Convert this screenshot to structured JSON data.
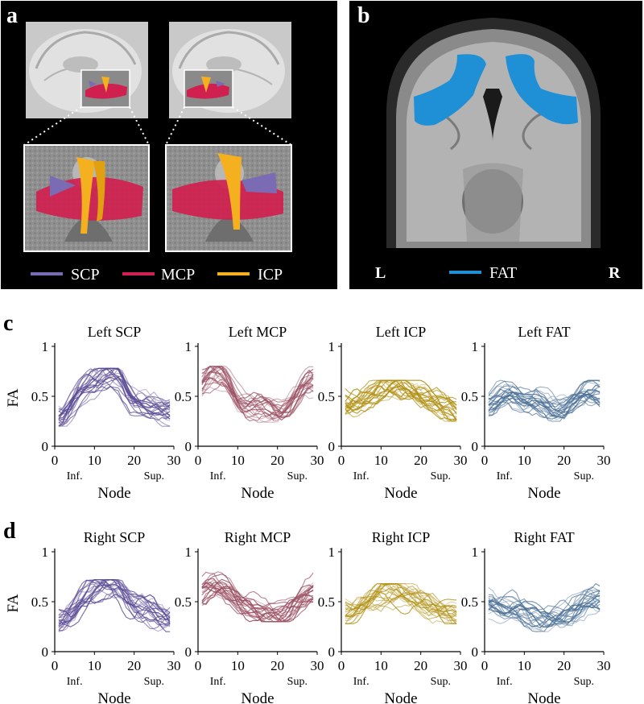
{
  "panels": {
    "a": {
      "letter": "a",
      "legend": [
        {
          "label": "SCP",
          "color": "#7b6bb5"
        },
        {
          "label": "MCP",
          "color": "#d0204f"
        },
        {
          "label": "ICP",
          "color": "#f5b01f"
        }
      ]
    },
    "b": {
      "letter": "b",
      "left_label": "L",
      "right_label": "R",
      "legend": [
        {
          "label": "FAT",
          "color": "#1f8fd6"
        }
      ]
    },
    "c": {
      "letter": "c"
    },
    "d": {
      "letter": "d"
    }
  },
  "colors": {
    "SCP": "#5a4a94",
    "MCP": "#9a4f62",
    "ICP": "#b08f10",
    "FAT": "#4a6f95"
  },
  "chart_data": [
    {
      "type": "line",
      "panel": "c",
      "title": "Left SCP",
      "tract": "SCP",
      "xlabel": "Node",
      "ylabel": "FA",
      "xlim": [
        0,
        30
      ],
      "ylim": [
        0,
        1
      ],
      "xticks": [
        0,
        10,
        20,
        30
      ],
      "yticks": [
        0,
        0.5,
        1
      ],
      "ytick_labels": [
        "0",
        "0.5",
        "1"
      ],
      "x_annotations": [
        "Inf.",
        "Sup."
      ],
      "grid": false,
      "x": [
        1,
        2,
        3,
        4,
        5,
        6,
        7,
        8,
        9,
        10,
        11,
        12,
        13,
        14,
        15,
        16,
        17,
        18,
        19,
        20,
        21,
        22,
        23,
        24,
        25,
        26,
        27,
        28,
        29
      ],
      "mean": [
        0.27,
        0.28,
        0.32,
        0.38,
        0.45,
        0.52,
        0.57,
        0.61,
        0.64,
        0.66,
        0.68,
        0.7,
        0.71,
        0.71,
        0.7,
        0.68,
        0.62,
        0.54,
        0.48,
        0.45,
        0.44,
        0.43,
        0.42,
        0.4,
        0.39,
        0.37,
        0.35,
        0.33,
        0.32
      ],
      "range": [
        0.2,
        0.78
      ]
    },
    {
      "type": "line",
      "panel": "c",
      "title": "Left MCP",
      "tract": "MCP",
      "xlabel": "Node",
      "ylabel": "FA",
      "xlim": [
        0,
        30
      ],
      "ylim": [
        0,
        1
      ],
      "xticks": [
        0,
        10,
        20,
        30
      ],
      "yticks": [
        0,
        0.5,
        1
      ],
      "ytick_labels": [
        "0",
        "0.5",
        "1"
      ],
      "x_annotations": [
        "Inf.",
        "Sup."
      ],
      "grid": false,
      "x": [
        1,
        2,
        3,
        4,
        5,
        6,
        7,
        8,
        9,
        10,
        11,
        12,
        13,
        14,
        15,
        16,
        17,
        18,
        19,
        20,
        21,
        22,
        23,
        24,
        25,
        26,
        27,
        28,
        29
      ],
      "mean": [
        0.62,
        0.66,
        0.69,
        0.7,
        0.7,
        0.69,
        0.66,
        0.6,
        0.53,
        0.47,
        0.43,
        0.41,
        0.4,
        0.39,
        0.38,
        0.37,
        0.36,
        0.35,
        0.34,
        0.34,
        0.35,
        0.38,
        0.42,
        0.47,
        0.52,
        0.56,
        0.59,
        0.61,
        0.62
      ],
      "range": [
        0.24,
        0.8
      ]
    },
    {
      "type": "line",
      "panel": "c",
      "title": "Left ICP",
      "tract": "ICP",
      "xlabel": "Node",
      "ylabel": "FA",
      "xlim": [
        0,
        30
      ],
      "ylim": [
        0,
        1
      ],
      "xticks": [
        0,
        10,
        20,
        30
      ],
      "yticks": [
        0,
        0.5,
        1
      ],
      "ytick_labels": [
        "0",
        "0.5",
        "1"
      ],
      "x_annotations": [
        "Inf.",
        "Sup."
      ],
      "grid": false,
      "x": [
        1,
        2,
        3,
        4,
        5,
        6,
        7,
        8,
        9,
        10,
        11,
        12,
        13,
        14,
        15,
        16,
        17,
        18,
        19,
        20,
        21,
        22,
        23,
        24,
        25,
        26,
        27,
        28,
        29
      ],
      "mean": [
        0.41,
        0.42,
        0.43,
        0.44,
        0.46,
        0.48,
        0.5,
        0.52,
        0.54,
        0.56,
        0.57,
        0.58,
        0.58,
        0.58,
        0.57,
        0.56,
        0.55,
        0.54,
        0.53,
        0.51,
        0.49,
        0.47,
        0.45,
        0.43,
        0.41,
        0.39,
        0.37,
        0.35,
        0.33
      ],
      "range": [
        0.25,
        0.66
      ]
    },
    {
      "type": "line",
      "panel": "c",
      "title": "Left FAT",
      "tract": "FAT",
      "xlabel": "Node",
      "ylabel": "FA",
      "xlim": [
        0,
        30
      ],
      "ylim": [
        0,
        1
      ],
      "xticks": [
        0,
        10,
        20,
        30
      ],
      "yticks": [
        0,
        0.5,
        1
      ],
      "ytick_labels": [
        "0",
        "0.5",
        "1"
      ],
      "x_annotations": [
        "Inf.",
        "Sup."
      ],
      "grid": false,
      "x": [
        1,
        2,
        3,
        4,
        5,
        6,
        7,
        8,
        9,
        10,
        11,
        12,
        13,
        14,
        15,
        16,
        17,
        18,
        19,
        20,
        21,
        22,
        23,
        24,
        25,
        26,
        27,
        28,
        29
      ],
      "mean": [
        0.44,
        0.45,
        0.47,
        0.49,
        0.5,
        0.5,
        0.49,
        0.47,
        0.45,
        0.44,
        0.44,
        0.45,
        0.46,
        0.45,
        0.43,
        0.41,
        0.39,
        0.38,
        0.38,
        0.39,
        0.41,
        0.44,
        0.47,
        0.5,
        0.52,
        0.53,
        0.53,
        0.53,
        0.52
      ],
      "range": [
        0.25,
        0.66
      ]
    },
    {
      "type": "line",
      "panel": "d",
      "title": "Right SCP",
      "tract": "SCP",
      "xlabel": "Node",
      "ylabel": "FA",
      "xlim": [
        0,
        30
      ],
      "ylim": [
        0,
        1
      ],
      "xticks": [
        0,
        10,
        20,
        30
      ],
      "yticks": [
        0,
        0.5,
        1
      ],
      "ytick_labels": [
        "0",
        "0.5",
        "1"
      ],
      "x_annotations": [
        "Inf.",
        "Sup."
      ],
      "grid": false,
      "x": [
        1,
        2,
        3,
        4,
        5,
        6,
        7,
        8,
        9,
        10,
        11,
        12,
        13,
        14,
        15,
        16,
        17,
        18,
        19,
        20,
        21,
        22,
        23,
        24,
        25,
        26,
        27,
        28,
        29
      ],
      "mean": [
        0.28,
        0.29,
        0.32,
        0.36,
        0.42,
        0.48,
        0.53,
        0.57,
        0.6,
        0.62,
        0.64,
        0.65,
        0.66,
        0.66,
        0.65,
        0.63,
        0.59,
        0.54,
        0.49,
        0.45,
        0.43,
        0.42,
        0.41,
        0.39,
        0.38,
        0.36,
        0.35,
        0.34,
        0.33
      ],
      "range": [
        0.2,
        0.72
      ]
    },
    {
      "type": "line",
      "panel": "d",
      "title": "Right MCP",
      "tract": "MCP",
      "xlabel": "Node",
      "ylabel": "FA",
      "xlim": [
        0,
        30
      ],
      "ylim": [
        0,
        1
      ],
      "xticks": [
        0,
        10,
        20,
        30
      ],
      "yticks": [
        0,
        0.5,
        1
      ],
      "ytick_labels": [
        "0",
        "0.5",
        "1"
      ],
      "x_annotations": [
        "Inf.",
        "Sup."
      ],
      "grid": false,
      "x": [
        1,
        2,
        3,
        4,
        5,
        6,
        7,
        8,
        9,
        10,
        11,
        12,
        13,
        14,
        15,
        16,
        17,
        18,
        19,
        20,
        21,
        22,
        23,
        24,
        25,
        26,
        27,
        28,
        29
      ],
      "mean": [
        0.6,
        0.63,
        0.65,
        0.66,
        0.66,
        0.65,
        0.63,
        0.6,
        0.56,
        0.52,
        0.49,
        0.47,
        0.45,
        0.43,
        0.41,
        0.39,
        0.38,
        0.37,
        0.36,
        0.36,
        0.37,
        0.39,
        0.42,
        0.46,
        0.5,
        0.54,
        0.57,
        0.59,
        0.6
      ],
      "range": [
        0.3,
        0.8
      ]
    },
    {
      "type": "line",
      "panel": "d",
      "title": "Right ICP",
      "tract": "ICP",
      "xlabel": "Node",
      "ylabel": "FA",
      "xlim": [
        0,
        30
      ],
      "ylim": [
        0,
        1
      ],
      "xticks": [
        0,
        10,
        20,
        30
      ],
      "yticks": [
        0,
        0.5,
        1
      ],
      "ytick_labels": [
        "0",
        "0.5",
        "1"
      ],
      "x_annotations": [
        "Inf.",
        "Sup."
      ],
      "grid": false,
      "x": [
        1,
        2,
        3,
        4,
        5,
        6,
        7,
        8,
        9,
        10,
        11,
        12,
        13,
        14,
        15,
        16,
        17,
        18,
        19,
        20,
        21,
        22,
        23,
        24,
        25,
        26,
        27,
        28,
        29
      ],
      "mean": [
        0.38,
        0.39,
        0.41,
        0.43,
        0.46,
        0.48,
        0.5,
        0.52,
        0.54,
        0.56,
        0.57,
        0.58,
        0.58,
        0.58,
        0.57,
        0.56,
        0.55,
        0.54,
        0.52,
        0.5,
        0.48,
        0.46,
        0.44,
        0.42,
        0.4,
        0.38,
        0.36,
        0.35,
        0.34
      ],
      "range": [
        0.28,
        0.68
      ]
    },
    {
      "type": "line",
      "panel": "d",
      "title": "Right FAT",
      "tract": "FAT",
      "xlabel": "Node",
      "ylabel": "FA",
      "xlim": [
        0,
        30
      ],
      "ylim": [
        0,
        1
      ],
      "xticks": [
        0,
        10,
        20,
        30
      ],
      "yticks": [
        0,
        0.5,
        1
      ],
      "ytick_labels": [
        "0",
        "0.5",
        "1"
      ],
      "x_annotations": [
        "Inf.",
        "Sup."
      ],
      "grid": false,
      "x": [
        1,
        2,
        3,
        4,
        5,
        6,
        7,
        8,
        9,
        10,
        11,
        12,
        13,
        14,
        15,
        16,
        17,
        18,
        19,
        20,
        21,
        22,
        23,
        24,
        25,
        26,
        27,
        28,
        29
      ],
      "mean": [
        0.49,
        0.49,
        0.48,
        0.47,
        0.46,
        0.46,
        0.46,
        0.45,
        0.43,
        0.4,
        0.37,
        0.35,
        0.34,
        0.33,
        0.33,
        0.33,
        0.34,
        0.35,
        0.36,
        0.37,
        0.39,
        0.41,
        0.44,
        0.47,
        0.5,
        0.52,
        0.53,
        0.53,
        0.52
      ],
      "range": [
        0.2,
        0.74
      ]
    }
  ]
}
